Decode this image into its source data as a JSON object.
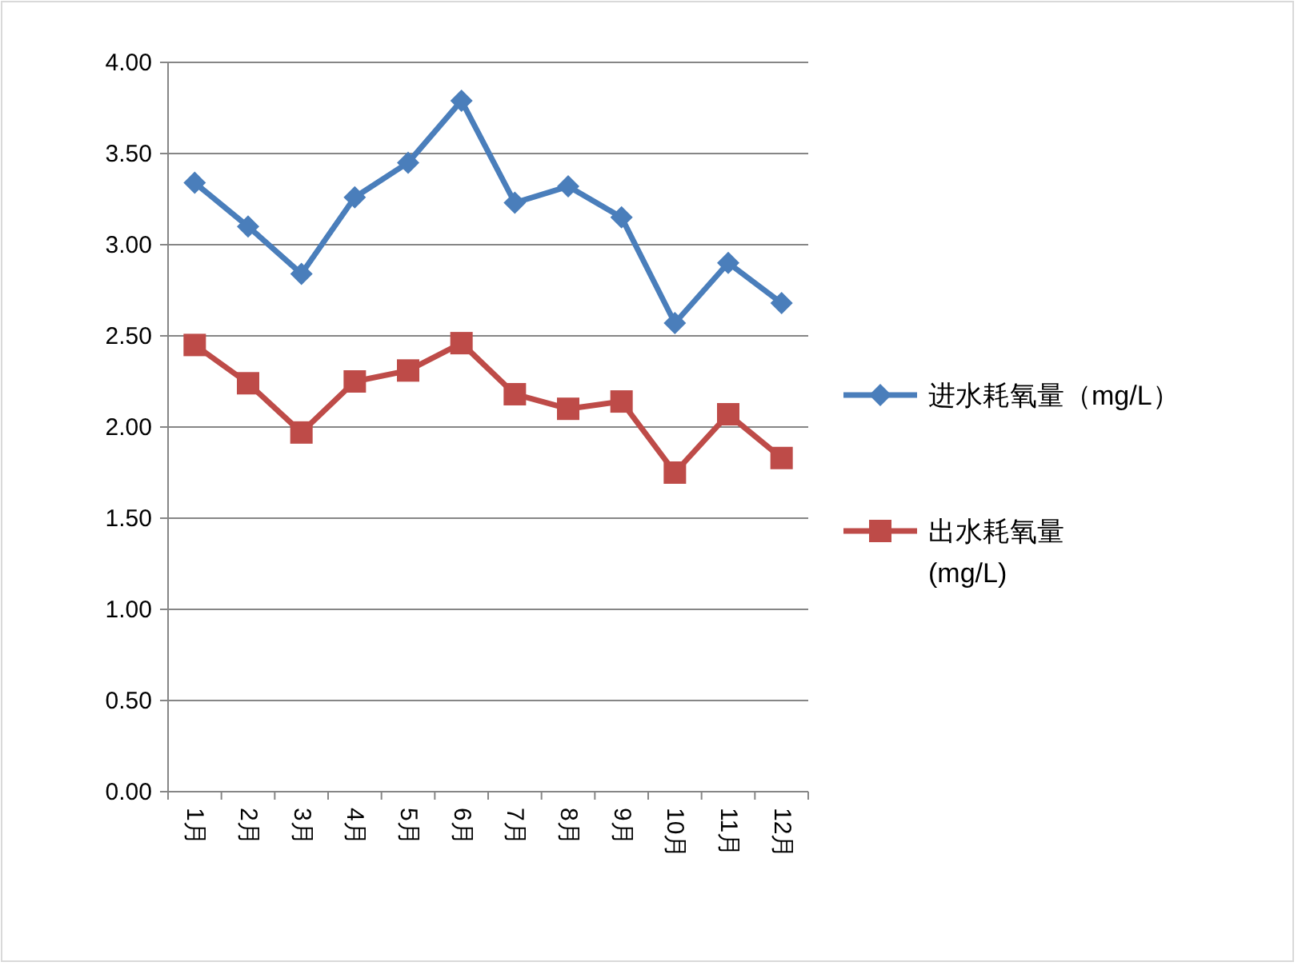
{
  "chart_data": {
    "type": "line",
    "categories": [
      "1月",
      "2月",
      "3月",
      "4月",
      "5月",
      "6月",
      "7月",
      "8月",
      "9月",
      "10月",
      "11月",
      "12月"
    ],
    "ylim": [
      0,
      4
    ],
    "yticks": [
      {
        "value": 0,
        "label": "0.00"
      },
      {
        "value": 0.5,
        "label": "0.50"
      },
      {
        "value": 1,
        "label": "1.00"
      },
      {
        "value": 1.5,
        "label": "1.50"
      },
      {
        "value": 2,
        "label": "2.00"
      },
      {
        "value": 2.5,
        "label": "2.50"
      },
      {
        "value": 3,
        "label": "3.00"
      },
      {
        "value": 3.5,
        "label": "3.50"
      },
      {
        "value": 4,
        "label": "4.00"
      }
    ],
    "grid": "y",
    "legend": "right",
    "series": [
      {
        "name": "进水耗氧量（mg/L）",
        "color": "#4a7ebb",
        "marker": "diamond",
        "values": [
          3.34,
          3.1,
          2.84,
          3.26,
          3.45,
          3.79,
          3.23,
          3.32,
          3.15,
          2.57,
          2.9,
          2.68
        ]
      },
      {
        "name": "出水耗氧量 (mg/L)",
        "color": "#be4b48",
        "marker": "square",
        "values": [
          2.45,
          2.24,
          1.97,
          2.25,
          2.31,
          2.46,
          2.18,
          2.1,
          2.14,
          1.75,
          2.07,
          1.83
        ]
      }
    ]
  }
}
